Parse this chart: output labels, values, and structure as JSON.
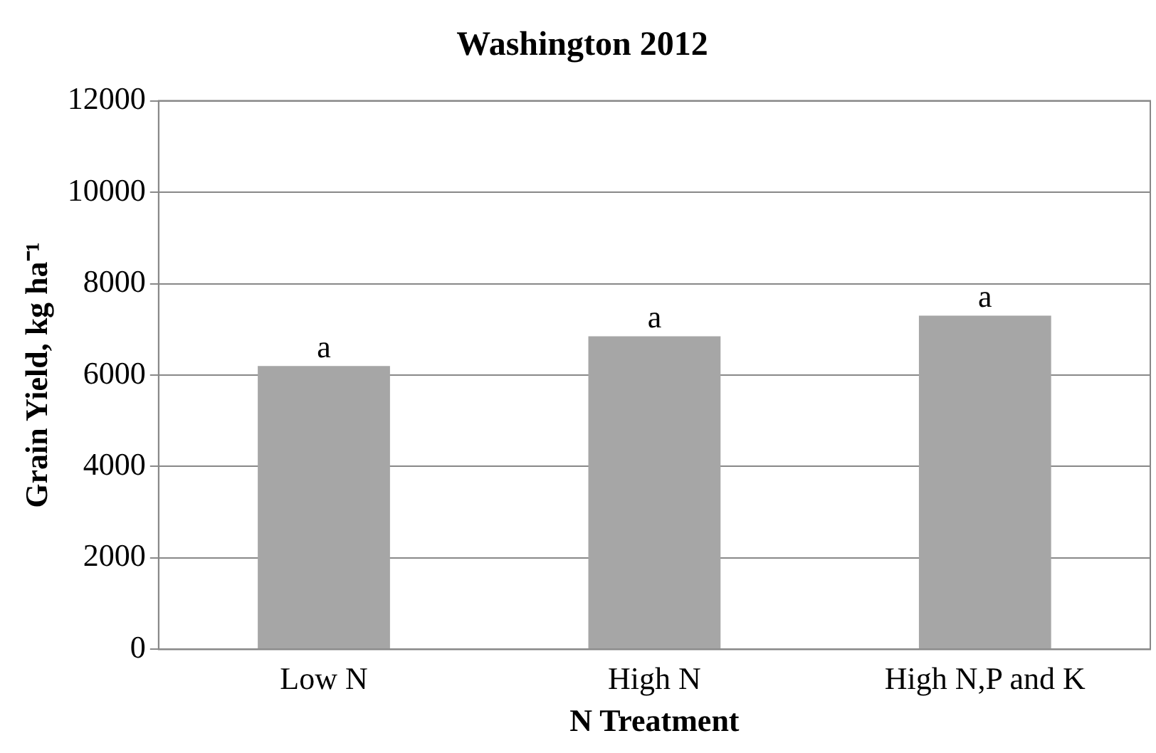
{
  "chart_data": {
    "type": "bar",
    "title": "Washington 2012",
    "xlabel": "N Treatment",
    "ylabel": "Grain Yield, kg ha⁻¹",
    "categories": [
      "Low N",
      "High N",
      "High N,P and K"
    ],
    "values": [
      6200,
      6850,
      7300
    ],
    "color": "#a6a6a6",
    "ylim": [
      0,
      12000
    ],
    "yticks": [
      0,
      2000,
      4000,
      6000,
      8000,
      10000,
      12000
    ],
    "grid": "y",
    "annotations": [
      {
        "text": "a",
        "x": "Low N",
        "y": 6200
      },
      {
        "text": "a",
        "x": "High N",
        "y": 6850
      },
      {
        "text": "a",
        "x": "High N,P and K",
        "y": 7300
      }
    ]
  }
}
